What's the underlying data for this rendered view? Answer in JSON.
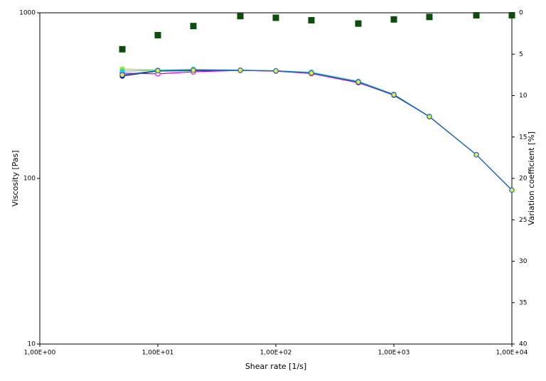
{
  "chart_data": {
    "type": "line",
    "x_label": "Shear rate [1/s]",
    "y_label": "Viscosity  [Pas]",
    "y2_label": "Variation coefficient [%]",
    "x": [
      5,
      10,
      20,
      50,
      100,
      200,
      500,
      1000,
      2000,
      5000,
      10000
    ],
    "xscale": "log",
    "yscale": "log",
    "xlim": [
      1,
      10000
    ],
    "ylim": [
      10,
      1000
    ],
    "y2lim": [
      0,
      40
    ],
    "y2_inverted": true,
    "xticks": [
      {
        "value": 1,
        "label": "1,00E+00"
      },
      {
        "value": 10,
        "label": "1,00E+01"
      },
      {
        "value": 100,
        "label": "1,00E+02"
      },
      {
        "value": 1000,
        "label": "1,00E+03"
      },
      {
        "value": 10000,
        "label": "1,00E+04"
      }
    ],
    "yticks": [
      10,
      100,
      1000
    ],
    "y2ticks": [
      0,
      5,
      10,
      15,
      20,
      25,
      30,
      35,
      40
    ],
    "grid": false,
    "series": [
      {
        "color": "#1a1a6e",
        "marker": "circle",
        "marker_fill": "#1a1a6e",
        "values": [
          415,
          445,
          447,
          449,
          445,
          432,
          380,
          318,
          236,
          139,
          85
        ]
      },
      {
        "color": "#cc00cc",
        "marker": "circle",
        "marker_fill": "#ffffff",
        "values": [
          432,
          428,
          440,
          449,
          444,
          430,
          378,
          320,
          236,
          139,
          85
        ]
      },
      {
        "color": "#99ee33",
        "marker": "circle",
        "marker_fill": "#99ee33",
        "values": [
          458,
          452,
          454,
          450,
          446,
          436,
          384,
          322,
          237,
          139,
          85
        ]
      },
      {
        "color": "#33cccc",
        "marker": "circle",
        "marker_fill": "#33cccc",
        "values": [
          445,
          449,
          456,
          451,
          447,
          438,
          386,
          322,
          237,
          139,
          85
        ]
      },
      {
        "color": "#1f5fbf",
        "marker": "circle",
        "marker_fill": "#e8e840",
        "values": [
          422,
          447,
          450,
          450,
          446,
          433,
          382,
          320,
          236,
          139,
          85
        ]
      },
      {
        "color": "#0d4d0d",
        "marker": "square",
        "line": false,
        "axis": "y2",
        "values": [
          4.4,
          2.7,
          1.6,
          0.4,
          0.6,
          0.9,
          1.3,
          0.8,
          0.5,
          0.3,
          0.3
        ]
      }
    ]
  }
}
